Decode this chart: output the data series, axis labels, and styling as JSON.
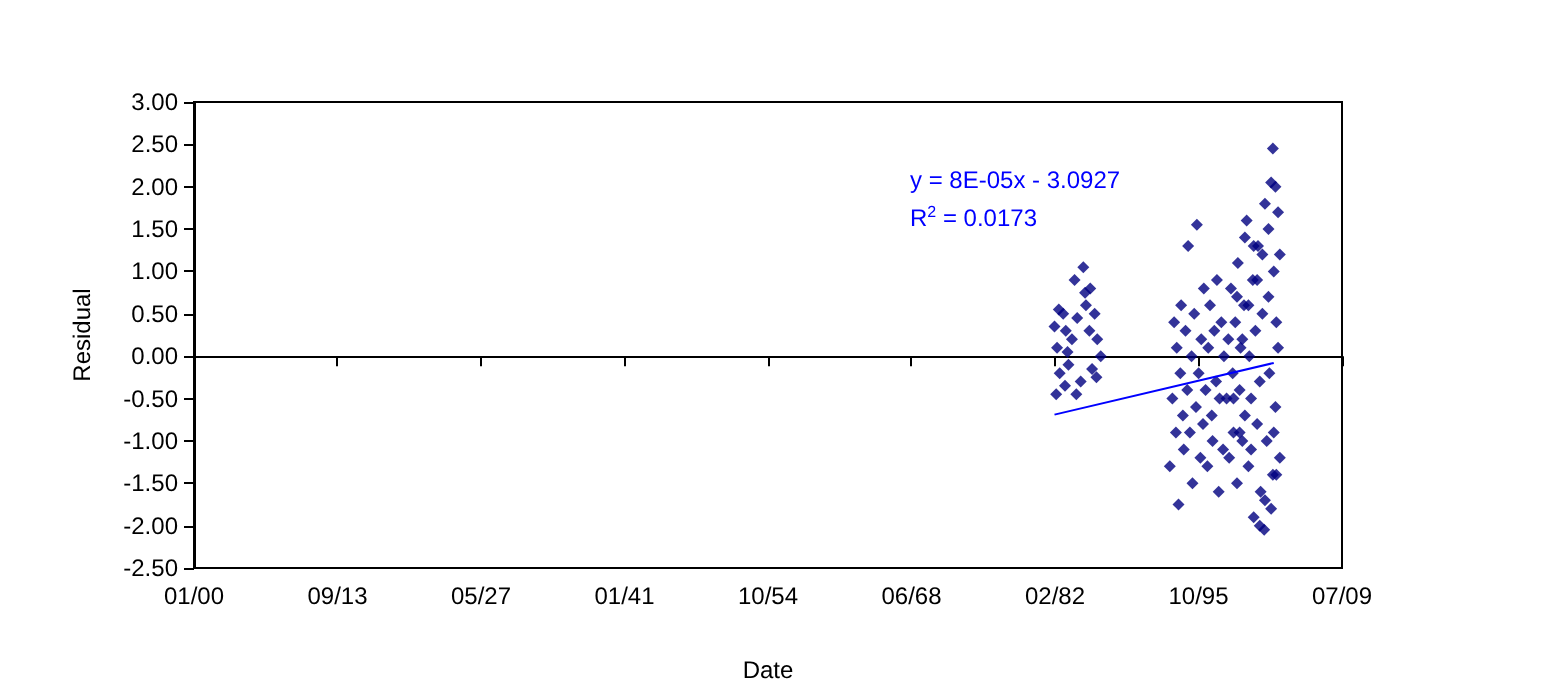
{
  "chart_data": {
    "type": "scatter",
    "xlabel": "Date",
    "ylabel": "Residual",
    "annotations": [
      "y = 8E-05x - 3.0927",
      "R$^{2}$ = 0.0173"
    ],
    "xlim": [
      "1899-12-31",
      "2009-07-06"
    ],
    "xticks": [
      {
        "value": "1899-12-31",
        "label": "01/00"
      },
      {
        "value": "1913-09-08",
        "label": "09/13"
      },
      {
        "value": "1927-05-18",
        "label": "05/27"
      },
      {
        "value": "1941-01-24",
        "label": "01/41"
      },
      {
        "value": "1954-10-03",
        "label": "10/54"
      },
      {
        "value": "1968-06-11",
        "label": "06/68"
      },
      {
        "value": "1982-02-18",
        "label": "02/82"
      },
      {
        "value": "1995-10-28",
        "label": "10/95"
      },
      {
        "value": "2009-07-06",
        "label": "07/09"
      }
    ],
    "ylim": [
      -2.5,
      3
    ],
    "yticks": [
      {
        "value": -2.5,
        "label": "-2.50"
      },
      {
        "value": -2,
        "label": "-2.00"
      },
      {
        "value": -1.5,
        "label": "-1.50"
      },
      {
        "value": -1,
        "label": "-1.00"
      },
      {
        "value": -0.5,
        "label": "-0.50"
      },
      {
        "value": 0,
        "label": "0.00"
      },
      {
        "value": 0.5,
        "label": "0.50"
      },
      {
        "value": 1,
        "label": "1.00"
      },
      {
        "value": 1.5,
        "label": "1.50"
      },
      {
        "value": 2,
        "label": "2.00"
      },
      {
        "value": 2.5,
        "label": "2.50"
      },
      {
        "value": 3,
        "label": "3.00"
      }
    ],
    "marker": "diamond",
    "series": [
      {
        "color": "#000080",
        "x": [
          "1982-02",
          "1982-05",
          "1982-08",
          "1982-04",
          "1982-12",
          "1983-03",
          "1983-06",
          "1983-10",
          "1984-01",
          "1984-04",
          "1984-08",
          "1984-11",
          "1985-02",
          "1985-06",
          "1985-09",
          "1985-12",
          "1986-03",
          "1986-07",
          "1983-02",
          "1984-03",
          "1985-01",
          "1982-07",
          "1985-07",
          "1983-05",
          "1986-02",
          "1993-02",
          "1993-05",
          "1993-07",
          "1993-09",
          "1993-10",
          "1993-12",
          "1994-02",
          "1994-03",
          "1994-05",
          "1994-06",
          "1994-08",
          "1994-10",
          "1994-11",
          "1995-01",
          "1995-03",
          "1995-04",
          "1995-06",
          "1995-08",
          "1995-09",
          "1995-11",
          "1996-01",
          "1996-02",
          "1996-04",
          "1996-05",
          "1996-07",
          "1996-09",
          "1996-10",
          "1996-12",
          "1997-02",
          "1997-03",
          "1997-05",
          "1997-07",
          "1997-08",
          "1997-10",
          "1997-11",
          "1998-01",
          "1998-03",
          "1998-04",
          "1998-07",
          "1998-09",
          "1998-10",
          "1998-12",
          "1999-02",
          "1999-03",
          "1999-05",
          "1999-07",
          "1999-08",
          "1999-10",
          "1999-11",
          "2000-01",
          "2000-03",
          "2000-04",
          "2000-06",
          "2000-08",
          "2000-09",
          "2000-11",
          "2001-01",
          "2001-02",
          "2001-04",
          "2001-06",
          "2001-07",
          "2001-09",
          "2001-10",
          "2001-12",
          "2002-02",
          "2002-03",
          "2002-05",
          "2002-07",
          "2002-08",
          "2002-10",
          "2002-12",
          "2003-01",
          "2003-03",
          "2003-04",
          "2003-06",
          "2003-08",
          "2002-12",
          "2003-03",
          "2003-04",
          "2003-06",
          "2003-08",
          "2003-01",
          "2002-10",
          "2002-07",
          "2002-03",
          "2001-12",
          "2001-09",
          "2001-06",
          "2001-02",
          "2000-11",
          "2000-08",
          "2000-04",
          "2000-01",
          "1999-10",
          "1999-07",
          "1999-03"
        ],
        "values": [
          0.35,
          0.1,
          -0.2,
          -0.45,
          0.5,
          0.3,
          -0.1,
          0.2,
          0.9,
          0.45,
          -0.3,
          1.05,
          0.6,
          0.3,
          -0.15,
          0.5,
          0.2,
          0.0,
          -0.35,
          -0.45,
          0.75,
          0.55,
          0.8,
          0.05,
          -0.25,
          -1.3,
          -0.5,
          0.4,
          -0.9,
          0.1,
          -1.75,
          -0.2,
          0.6,
          -0.7,
          -1.1,
          0.3,
          -0.4,
          1.3,
          -0.9,
          0.0,
          -1.5,
          0.5,
          -0.6,
          1.55,
          -0.2,
          -1.2,
          0.2,
          -0.8,
          0.8,
          -0.4,
          -1.3,
          0.1,
          0.6,
          -0.7,
          -1.0,
          0.3,
          -0.3,
          0.9,
          -1.6,
          -0.5,
          0.4,
          -1.1,
          0.0,
          -0.5,
          0.2,
          -1.2,
          0.8,
          -0.2,
          -0.9,
          0.4,
          -1.5,
          1.1,
          -0.4,
          0.1,
          -1.0,
          0.6,
          -0.7,
          1.6,
          -1.3,
          0.0,
          -0.5,
          0.9,
          -1.9,
          0.3,
          -0.8,
          1.3,
          -0.3,
          -1.6,
          0.5,
          -2.05,
          1.8,
          -1.0,
          0.7,
          -0.2,
          2.05,
          -1.4,
          1.0,
          -0.6,
          0.4,
          1.7,
          -1.2,
          2.45,
          2.0,
          -1.4,
          0.1,
          1.2,
          -0.9,
          -1.8,
          1.5,
          -1.7,
          1.2,
          -2.0,
          0.9,
          1.3,
          -1.1,
          0.6,
          1.4,
          0.2,
          -0.9,
          0.7,
          -0.5
        ]
      },
      {
        "type": "line",
        "color": "#0000ff",
        "marker": "none",
        "x": [
          "1982-02",
          "2003-01"
        ],
        "values": [
          -0.69,
          -0.08
        ]
      }
    ]
  }
}
